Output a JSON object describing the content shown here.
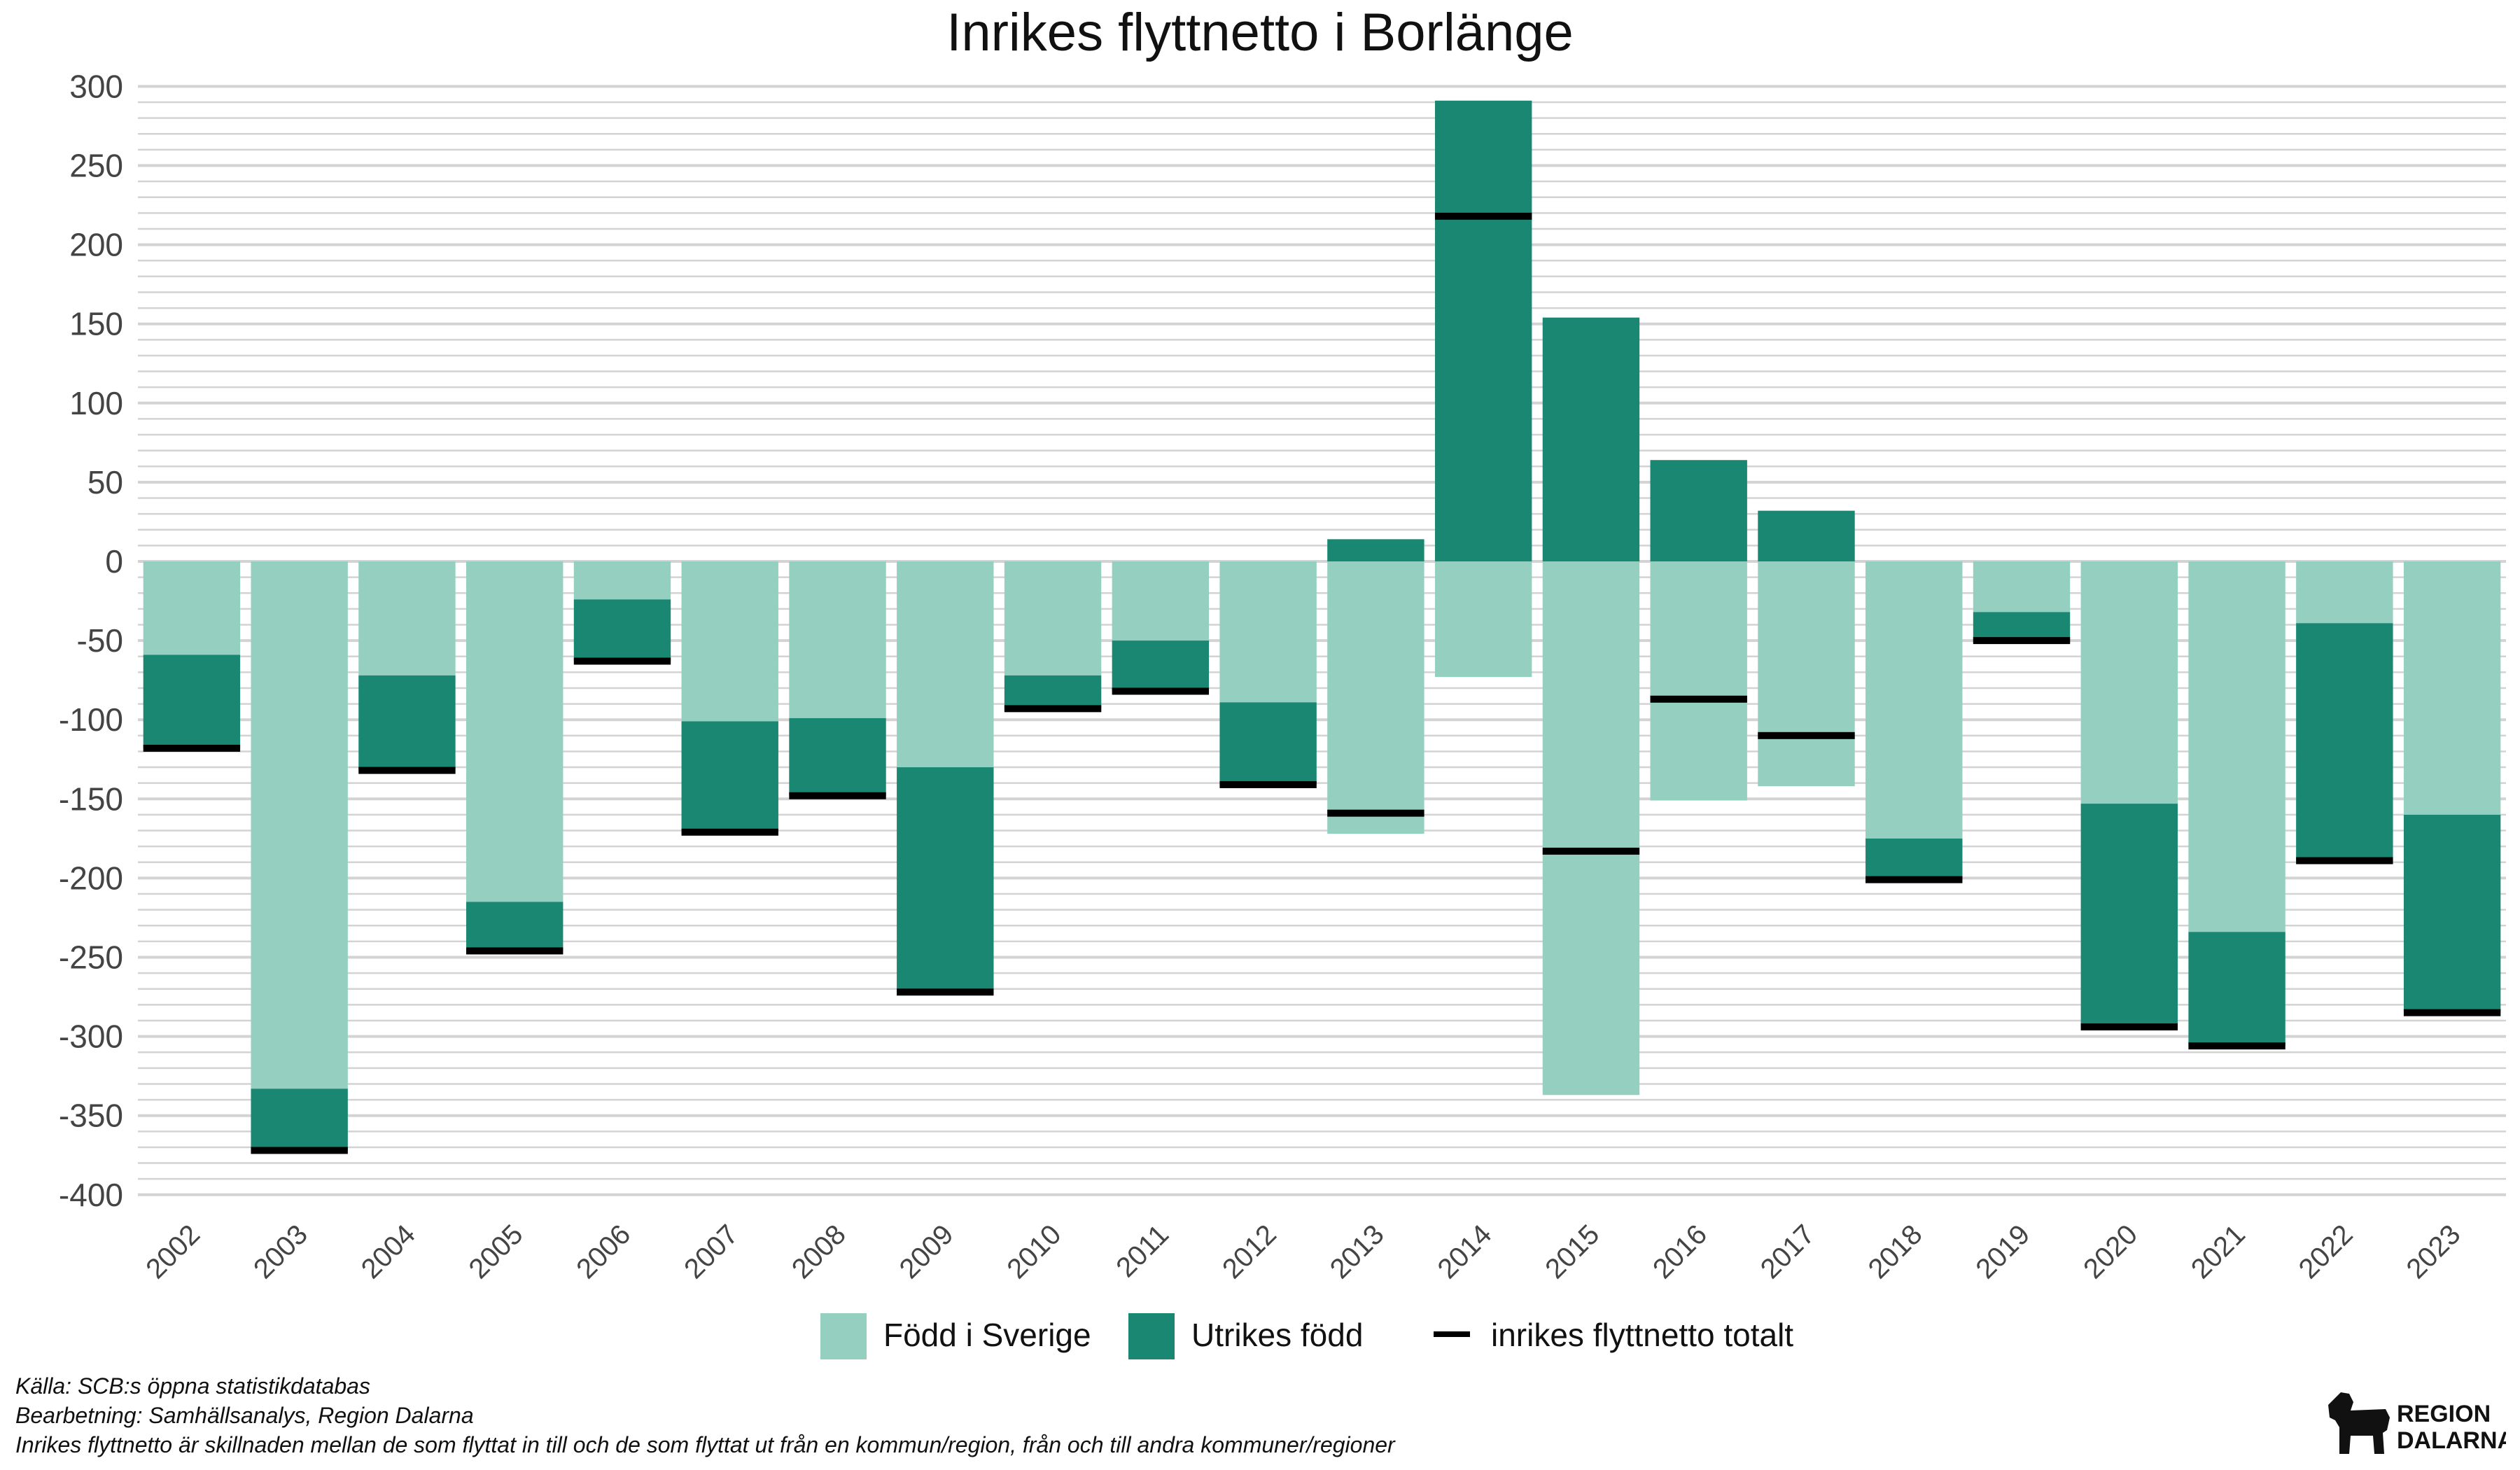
{
  "chart_data": {
    "type": "bar",
    "stacked": true,
    "title": "Inrikes flyttnetto i Borlänge",
    "xlabel": "",
    "ylabel": "",
    "ylim": [
      -400,
      300
    ],
    "yticks": [
      300,
      250,
      200,
      150,
      100,
      50,
      0,
      -50,
      -100,
      -150,
      -200,
      -250,
      -300,
      -350,
      -400
    ],
    "grid": true,
    "legend_position": "bottom",
    "categories": [
      "2002",
      "2003",
      "2004",
      "2005",
      "2006",
      "2007",
      "2008",
      "2009",
      "2010",
      "2011",
      "2012",
      "2013",
      "2014",
      "2015",
      "2016",
      "2017",
      "2018",
      "2019",
      "2020",
      "2021",
      "2022",
      "2023"
    ],
    "series": [
      {
        "name": "Född i Sverige",
        "color": "#94cfc0",
        "values": [
          -59,
          -333,
          -72,
          -215,
          -24,
          -101,
          -99,
          -130,
          -72,
          -50,
          -89,
          -172,
          -73,
          -337,
          -151,
          -142,
          -175,
          -32,
          -153,
          -234,
          -39,
          -160
        ]
      },
      {
        "name": "Utrikes född",
        "color": "#1a8772",
        "values": [
          -59,
          -39,
          -60,
          -31,
          -39,
          -70,
          -49,
          -142,
          -21,
          -32,
          -52,
          14,
          291,
          154,
          64,
          32,
          -26,
          -19,
          -141,
          -72,
          -150,
          -125
        ]
      },
      {
        "name": "inrikes flyttnetto totalt",
        "type": "marker",
        "color": "#000000",
        "values": [
          -118,
          -372,
          -132,
          -246,
          -63,
          -171,
          -148,
          -272,
          -93,
          -82,
          -141,
          -159,
          218,
          -183,
          -87,
          -110,
          -201,
          -50,
          -294,
          -306,
          -189,
          -285
        ]
      }
    ]
  },
  "footer": {
    "source": "Källa: SCB:s öppna statistikdatabas",
    "processing": "Bearbetning: Samhällsanalys, Region Dalarna",
    "note": "Inrikes flyttnetto är skillnaden mellan de som flyttat in till och de som flyttat ut från en kommun/region, från och till andra kommuner/regioner"
  },
  "logo": {
    "line1": "REGION",
    "line2": "DALARNA"
  }
}
